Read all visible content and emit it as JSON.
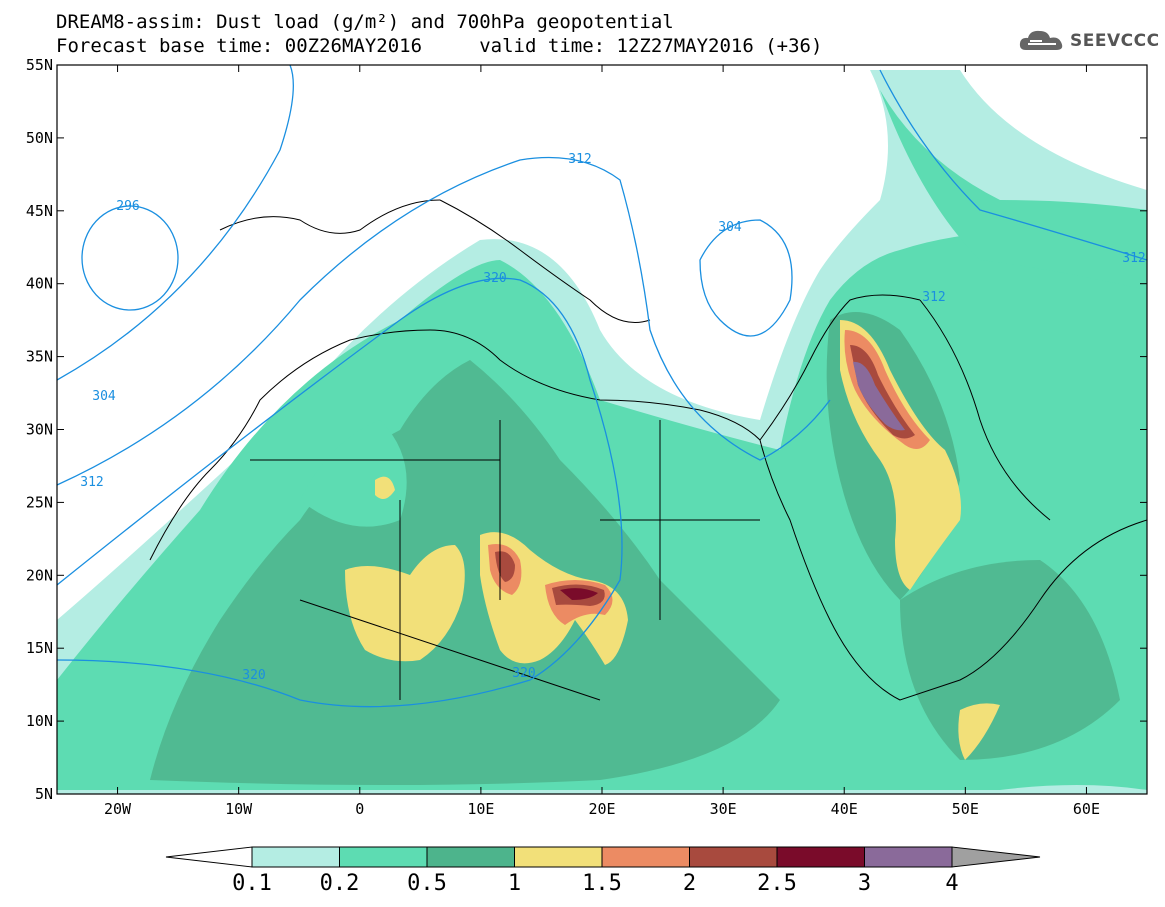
{
  "title": {
    "line1": "DREAM8-assim: Dust load (g/m²) and 700hPa geopotential",
    "line2": "Forecast base time: 00Z26MAY2016     valid time: 12Z27MAY2016 (+36)"
  },
  "logo": {
    "text": "SEEVCCC",
    "icon": "cloud-icon"
  },
  "map": {
    "lon_range": [
      -25,
      65
    ],
    "lat_range": [
      5,
      55
    ],
    "lat_ticks": [
      "55N",
      "50N",
      "45N",
      "40N",
      "35N",
      "30N",
      "25N",
      "20N",
      "15N",
      "10N",
      "5N"
    ],
    "lon_ticks": [
      "20W",
      "10W",
      "0",
      "10E",
      "20E",
      "30E",
      "40E",
      "50E",
      "60E"
    ],
    "contour_labels": [
      "296",
      "304",
      "304",
      "312",
      "312",
      "312",
      "312",
      "320",
      "320",
      "320"
    ],
    "contour_color": "#1a8fe0"
  },
  "colorbar": {
    "levels": [
      "0.1",
      "0.2",
      "0.5",
      "1",
      "1.5",
      "2",
      "2.5",
      "3",
      "4"
    ],
    "colors": [
      "#b4ede3",
      "#5ddcb2",
      "#4db48c",
      "#f2e079",
      "#ec8b63",
      "#a84a3e",
      "#7a0b2a",
      "#8a6a9a"
    ]
  }
}
